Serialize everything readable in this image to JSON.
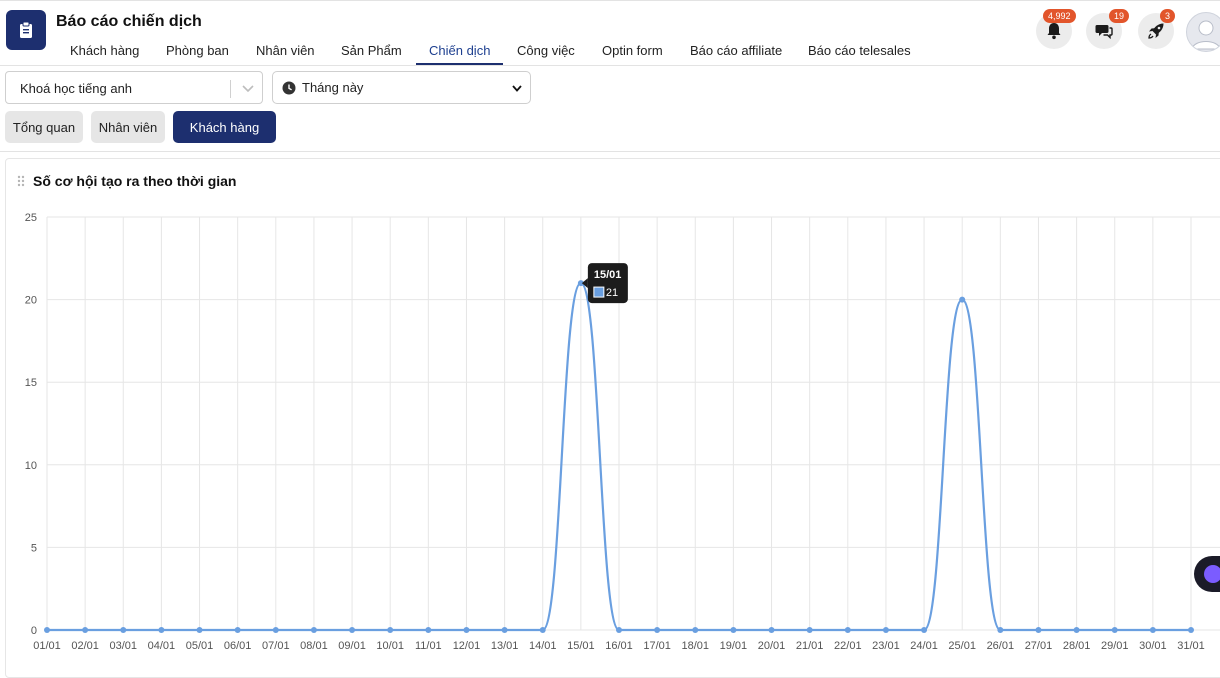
{
  "header": {
    "title": "Báo cáo chiến dịch",
    "tabs": [
      {
        "label": "Khách hàng",
        "active": false
      },
      {
        "label": "Phòng ban",
        "active": false
      },
      {
        "label": "Nhân viên",
        "active": false
      },
      {
        "label": "Sản Phẩm",
        "active": false
      },
      {
        "label": "Chiến dịch",
        "active": true
      },
      {
        "label": "Công việc",
        "active": false
      },
      {
        "label": "Optin form",
        "active": false
      },
      {
        "label": "Báo cáo affiliate",
        "active": false
      },
      {
        "label": "Báo cáo telesales",
        "active": false
      }
    ],
    "badges": {
      "notifications": "4,992",
      "messages": "19",
      "updates": "3"
    },
    "icons": [
      "clipboard-icon",
      "bell-icon",
      "chat-icon",
      "rocket-icon",
      "user-avatar-icon"
    ]
  },
  "filters": {
    "course": {
      "value": "Khoá học tiếng anh"
    },
    "period": {
      "value": "Tháng này"
    }
  },
  "view_tabs": [
    {
      "label": "Tổng quan",
      "active": false
    },
    {
      "label": "Nhân viên",
      "active": false
    },
    {
      "label": "Khách hàng",
      "active": true
    }
  ],
  "card": {
    "title": "Số cơ hội tạo ra theo thời gian"
  },
  "tooltip": {
    "date": "15/01",
    "value": "21"
  },
  "colors": {
    "brand": "#1d2f6f",
    "line": "#6a9fe0",
    "badge": "#e2552b"
  },
  "chart_data": {
    "type": "line",
    "title": "Số cơ hội tạo ra theo thời gian",
    "x": [
      "01/01",
      "02/01",
      "03/01",
      "04/01",
      "05/01",
      "06/01",
      "07/01",
      "08/01",
      "09/01",
      "10/01",
      "11/01",
      "12/01",
      "13/01",
      "14/01",
      "15/01",
      "16/01",
      "17/01",
      "18/01",
      "19/01",
      "20/01",
      "21/01",
      "22/01",
      "23/01",
      "24/01",
      "25/01",
      "26/01",
      "27/01",
      "28/01",
      "29/01",
      "30/01",
      "31/01"
    ],
    "series": [
      {
        "values": [
          0,
          0,
          0,
          0,
          0,
          0,
          0,
          0,
          0,
          0,
          0,
          0,
          0,
          0,
          21,
          0,
          0,
          0,
          0,
          0,
          0,
          0,
          0,
          0,
          20,
          0,
          0,
          0,
          0,
          0,
          0
        ]
      }
    ],
    "yticks": [
      0,
      5,
      10,
      15,
      20,
      25
    ],
    "ylim": [
      0,
      25
    ],
    "grid": true,
    "legend": "none"
  }
}
